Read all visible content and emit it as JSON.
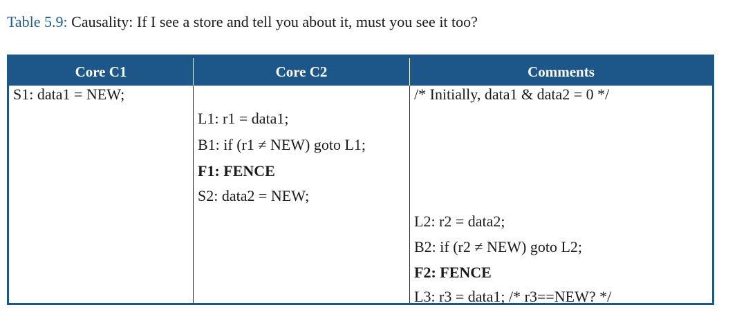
{
  "caption": {
    "label": "Table 5.9:",
    "text": " Causality: If I see a store and tell you about it, must you see it too?"
  },
  "table": {
    "headers": [
      "Core C1",
      "Core C2",
      "Comments"
    ],
    "core_c1": [
      "S1: data1 = NEW;"
    ],
    "core_c2": [
      "L1: r1 = data1;",
      "B1: if (r1 ≠ NEW) goto L1;",
      "F1: FENCE",
      "S2: data2 = NEW;"
    ],
    "comments": [
      "/* Initially, data1 & data2 = 0 */",
      "L2: r2 = data2;",
      "B2: if (r2 ≠ NEW) goto L2;",
      "F2: FENCE",
      "L3: r3 = data1; /* r3==NEW? */"
    ]
  },
  "colors": {
    "header_bg": "#1d5789",
    "caption_label": "#1f5a92"
  }
}
